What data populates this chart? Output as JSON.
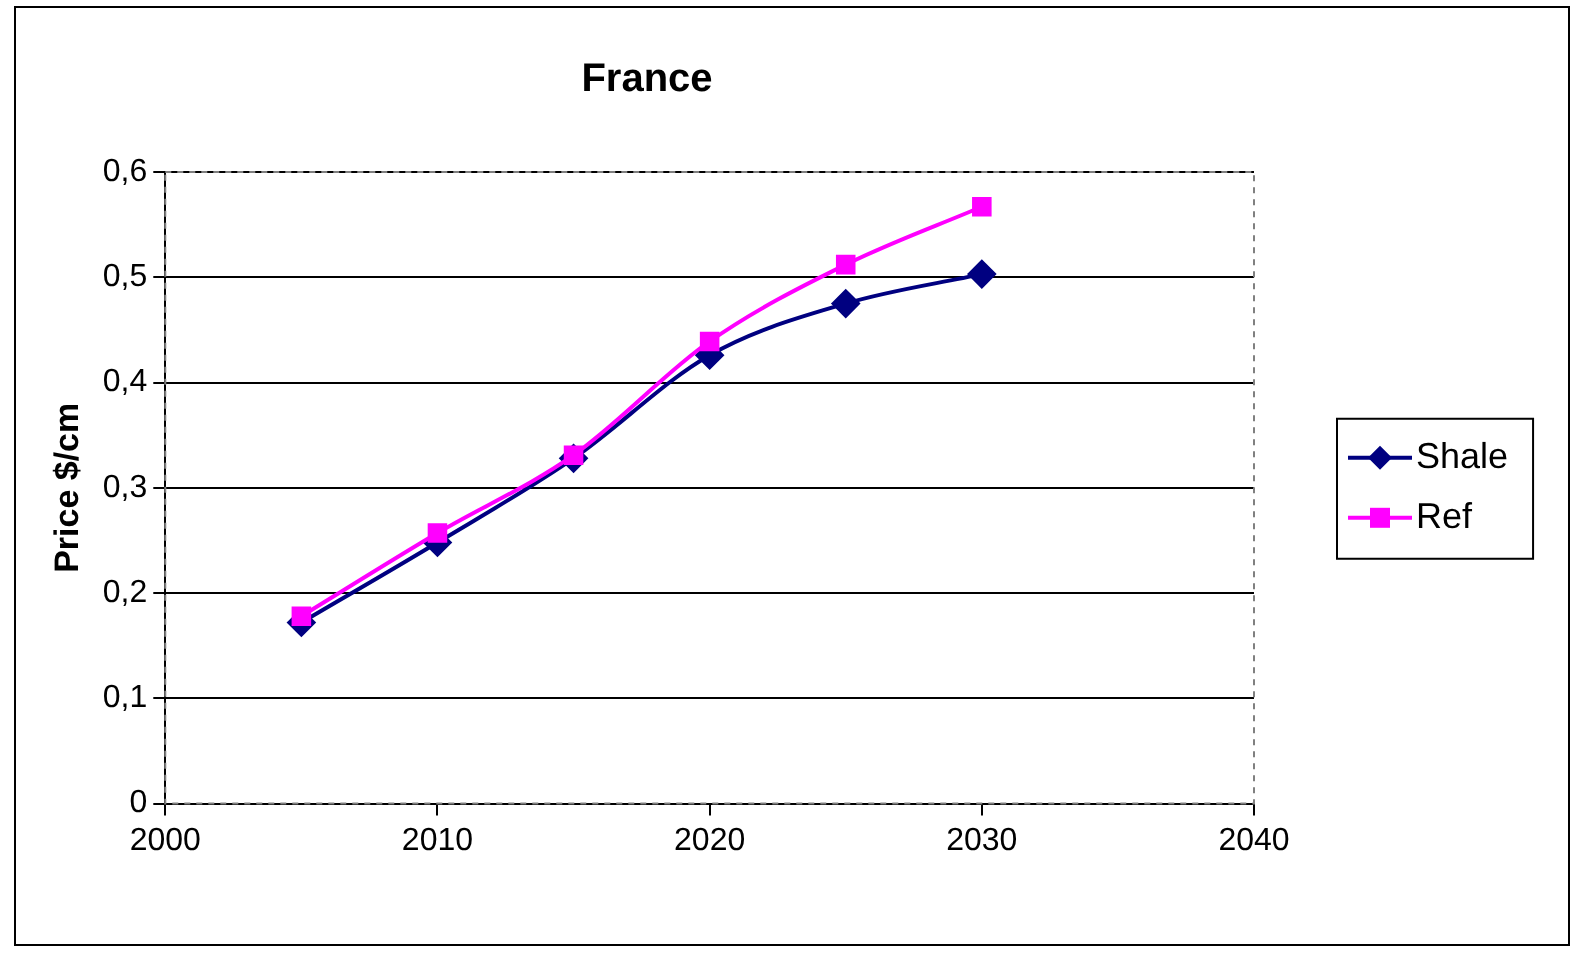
{
  "chart_data": {
    "type": "line",
    "title": "France",
    "ylabel": "Price $/cm",
    "x": [
      2005,
      2010,
      2015,
      2020,
      2025,
      2030
    ],
    "series": [
      {
        "name": "Shale",
        "color": "#000080",
        "marker": "diamond",
        "values": [
          0.172,
          0.248,
          0.328,
          0.426,
          0.475,
          0.503
        ]
      },
      {
        "name": "Ref",
        "color": "#ff00ff",
        "marker": "square",
        "values": [
          0.178,
          0.257,
          0.331,
          0.439,
          0.512,
          0.567
        ]
      }
    ],
    "xlim": [
      2000,
      2040
    ],
    "xticks": [
      2000,
      2010,
      2020,
      2030,
      2040
    ],
    "ylim": [
      0,
      0.6
    ],
    "yticks": [
      {
        "value": 0,
        "label": "0"
      },
      {
        "value": 0.1,
        "label": "0,1"
      },
      {
        "value": 0.2,
        "label": "0,2"
      },
      {
        "value": 0.3,
        "label": "0,3"
      },
      {
        "value": 0.4,
        "label": "0,4"
      },
      {
        "value": 0.5,
        "label": "0,5"
      },
      {
        "value": 0.6,
        "label": "0,6"
      }
    ],
    "grid": "y",
    "legend": "right"
  }
}
